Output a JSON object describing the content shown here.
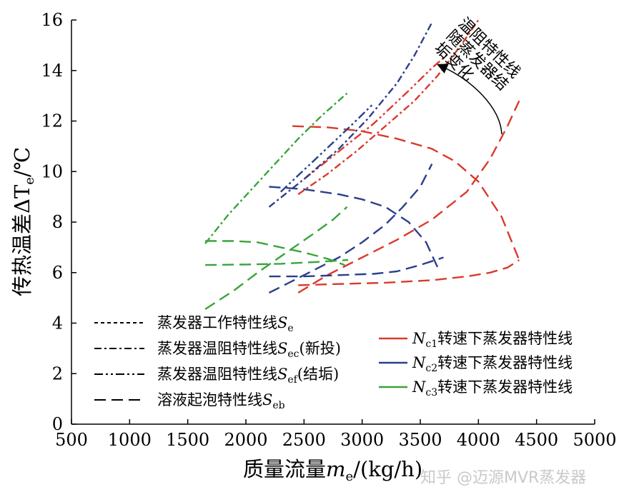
{
  "chart_data": {
    "type": "line",
    "xlabel": "质量流量",
    "xlabel_var": "m",
    "xlabel_sub": "e",
    "xlabel_unit": "/(kg/h)",
    "ylabel": "传热温差ΔT",
    "ylabel_sub": "e",
    "ylabel_unit": "/℃",
    "xlim": [
      500,
      5000
    ],
    "ylim": [
      0,
      16
    ],
    "xticks": [
      500,
      1000,
      1500,
      2000,
      2500,
      3000,
      3500,
      4000,
      4500,
      5000
    ],
    "yticks": [
      0,
      2,
      4,
      6,
      8,
      10,
      12,
      14,
      16
    ],
    "grid": false,
    "colors": {
      "Nc1": "#d93a2b",
      "Nc2": "#2b3f8c",
      "Nc3": "#3aa43a"
    },
    "annotation": "温阻特性线随蒸发器结垢变化",
    "style_legend": [
      {
        "label": "蒸发器工作特性线",
        "sym": "S",
        "sub": "e",
        "suffix": "",
        "dash": "5,4"
      },
      {
        "label": "蒸发器温阻特性线",
        "sym": "S",
        "sub": "ec",
        "suffix": "(新投)",
        "dash": "10,4,3,4"
      },
      {
        "label": "蒸发器温阻特性线",
        "sym": "S",
        "sub": "ef",
        "suffix": "(结垢)",
        "dash": "12,4,3,4,3,4"
      },
      {
        "label": "溶液起泡特性线",
        "sym": "S",
        "sub": "eb",
        "suffix": "",
        "dash": "16,8"
      }
    ],
    "color_legend": [
      {
        "sym": "N",
        "sub": "c1",
        "label": "转速下蒸发器特性线",
        "key": "Nc1"
      },
      {
        "sym": "N",
        "sub": "c2",
        "label": "转速下蒸发器特性线",
        "key": "Nc2"
      },
      {
        "sym": "N",
        "sub": "c3",
        "label": "转速下蒸发器特性线",
        "key": "Nc3"
      }
    ],
    "series": [
      {
        "key": "Nc1",
        "style": "Se",
        "dash": "16,8",
        "x": [
          2400,
          2700,
          3000,
          3300,
          3600,
          3800,
          4000,
          4200,
          4350
        ],
        "y": [
          11.8,
          11.75,
          11.6,
          11.3,
          10.9,
          10.4,
          9.6,
          8.2,
          6.5
        ]
      },
      {
        "key": "Nc1",
        "style": "Seb",
        "dash": "16,8",
        "x": [
          2450,
          2700,
          3000,
          3300,
          3600,
          3900,
          4100,
          4250,
          4350
        ],
        "y": [
          5.2,
          5.9,
          6.6,
          7.3,
          8.1,
          9.2,
          10.5,
          11.8,
          12.8
        ]
      },
      {
        "key": "Nc1",
        "style": "Seb",
        "dash": "16,8",
        "x": [
          2450,
          2800,
          3200,
          3600,
          3900,
          4100,
          4250,
          4350
        ],
        "y": [
          5.5,
          5.55,
          5.6,
          5.7,
          5.85,
          6.0,
          6.2,
          6.5
        ]
      },
      {
        "key": "Nc1",
        "style": "Sec",
        "dash": "10,4,3,4",
        "x": [
          2450,
          2700,
          2950,
          3200,
          3450,
          3650,
          3850,
          4000
        ],
        "y": [
          9.1,
          9.9,
          10.8,
          11.8,
          12.8,
          13.8,
          15.0,
          16.0
        ]
      },
      {
        "key": "Nc1",
        "style": "Sef",
        "dash": "12,4,3,4,3,4",
        "x": [
          2500,
          2800,
          3100,
          3400,
          3600,
          3750
        ],
        "y": [
          9.7,
          10.8,
          11.9,
          13.2,
          14.1,
          14.7
        ]
      },
      {
        "key": "Nc2",
        "style": "Se",
        "dash": "16,8",
        "x": [
          2200,
          2500,
          2800,
          3000,
          3200,
          3400,
          3550,
          3650
        ],
        "y": [
          9.4,
          9.3,
          9.1,
          8.9,
          8.6,
          8.0,
          7.2,
          6.2
        ]
      },
      {
        "key": "Nc2",
        "style": "Seb",
        "dash": "16,8",
        "x": [
          2200,
          2500,
          2800,
          3000,
          3200,
          3350,
          3500,
          3600
        ],
        "y": [
          5.2,
          5.9,
          6.6,
          7.2,
          7.9,
          8.6,
          9.4,
          10.3
        ]
      },
      {
        "key": "Nc2",
        "style": "Seb",
        "dash": "16,8",
        "x": [
          2200,
          2500,
          2800,
          3100,
          3300,
          3500,
          3700
        ],
        "y": [
          5.85,
          5.85,
          5.9,
          5.95,
          6.05,
          6.3,
          6.6
        ]
      },
      {
        "key": "Nc2",
        "style": "Sec",
        "dash": "10,4,3,4",
        "x": [
          2200,
          2500,
          2800,
          3050,
          3300,
          3450,
          3600
        ],
        "y": [
          8.6,
          9.7,
          10.9,
          12.1,
          13.5,
          14.6,
          15.9
        ]
      },
      {
        "key": "Nc2",
        "style": "Sef",
        "dash": "12,4,3,4,3,4",
        "x": [
          2300,
          2600,
          2900,
          3100
        ],
        "y": [
          9.2,
          10.5,
          11.8,
          12.7
        ]
      },
      {
        "key": "Nc3",
        "style": "Se",
        "dash": "16,8",
        "x": [
          1650,
          1900,
          2100,
          2300,
          2500,
          2700,
          2850
        ],
        "y": [
          7.25,
          7.25,
          7.2,
          7.0,
          6.8,
          6.55,
          6.3
        ]
      },
      {
        "key": "Nc3",
        "style": "Seb",
        "dash": "16,8",
        "x": [
          1650,
          1900,
          2100,
          2350,
          2600,
          2750,
          2870
        ],
        "y": [
          4.55,
          5.3,
          6.0,
          6.8,
          7.6,
          8.1,
          8.6
        ]
      },
      {
        "key": "Nc3",
        "style": "Seb",
        "dash": "16,8",
        "x": [
          1650,
          2000,
          2300,
          2600,
          2880
        ],
        "y": [
          6.3,
          6.32,
          6.35,
          6.42,
          6.5
        ]
      },
      {
        "key": "Nc3",
        "style": "Sec",
        "dash": "10,4,3,4",
        "x": [
          1650,
          1850,
          2050,
          2250,
          2450,
          2650,
          2870
        ],
        "y": [
          7.15,
          8.3,
          9.3,
          10.3,
          11.3,
          12.2,
          13.1
        ]
      }
    ]
  },
  "watermark": "知乎 @迈源MVR蒸发器"
}
